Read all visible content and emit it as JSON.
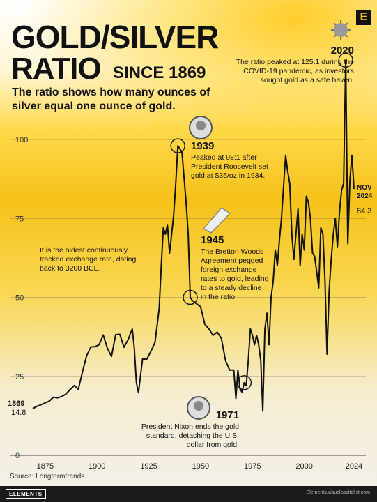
{
  "header": {
    "title_line1": "GOLD/SILVER",
    "title_line2": "RATIO",
    "since": "SINCE 1869",
    "subtitle": "The ratio shows how many ounces of silver equal one ounce of gold.",
    "brand_letter": "E"
  },
  "footer": {
    "source": "Source: Longtermtrends",
    "brand": "ELEMENTS",
    "right_text": "Elements.visualcapitalist.com"
  },
  "colors": {
    "accent": "#f6c21a",
    "line": "#111111",
    "text": "#111111"
  },
  "chart_data": {
    "type": "line",
    "title": "GOLD/SILVER RATIO SINCE 1869",
    "subtitle": "The ratio shows how many ounces of silver equal one ounce of gold.",
    "xlabel": "",
    "ylabel": "",
    "xlim": [
      1869,
      2024
    ],
    "ylim": [
      0,
      100
    ],
    "x_ticks": [
      "1875",
      "1900",
      "1925",
      "1950",
      "1975",
      "2000",
      "2024"
    ],
    "y_ticks": [
      "0",
      "25",
      "50",
      "75",
      "100"
    ],
    "grid": true,
    "series": [
      {
        "name": "",
        "points": [
          [
            1869,
            14.8
          ],
          [
            1871,
            15.5
          ],
          [
            1873,
            16.0
          ],
          [
            1875,
            16.6
          ],
          [
            1877,
            17.2
          ],
          [
            1879,
            18.4
          ],
          [
            1881,
            18.2
          ],
          [
            1883,
            18.6
          ],
          [
            1885,
            19.4
          ],
          [
            1887,
            20.8
          ],
          [
            1889,
            22.1
          ],
          [
            1891,
            20.9
          ],
          [
            1893,
            26.5
          ],
          [
            1895,
            31.5
          ],
          [
            1897,
            34.3
          ],
          [
            1899,
            34.4
          ],
          [
            1901,
            35.0
          ],
          [
            1903,
            38.1
          ],
          [
            1905,
            33.9
          ],
          [
            1907,
            31.3
          ],
          [
            1909,
            38.2
          ],
          [
            1911,
            38.3
          ],
          [
            1913,
            34.2
          ],
          [
            1915,
            36.6
          ],
          [
            1917,
            40.0
          ],
          [
            1918,
            34.0
          ],
          [
            1919,
            23.0
          ],
          [
            1920,
            19.8
          ],
          [
            1922,
            30.5
          ],
          [
            1924,
            30.4
          ],
          [
            1926,
            32.9
          ],
          [
            1928,
            35.8
          ],
          [
            1930,
            46.4
          ],
          [
            1931,
            60.0
          ],
          [
            1932,
            72.0
          ],
          [
            1933,
            70.0
          ],
          [
            1934,
            73.0
          ],
          [
            1935,
            64.0
          ],
          [
            1936,
            70.0
          ],
          [
            1937,
            76.0
          ],
          [
            1938,
            86.0
          ],
          [
            1939,
            98.0
          ],
          [
            1940,
            97.0
          ],
          [
            1941,
            96.0
          ],
          [
            1942,
            88.0
          ],
          [
            1943,
            80.0
          ],
          [
            1944,
            70.0
          ],
          [
            1945,
            50.0
          ],
          [
            1946,
            49.0
          ],
          [
            1948,
            48.0
          ],
          [
            1950,
            47.0
          ],
          [
            1952,
            41.5
          ],
          [
            1954,
            40.0
          ],
          [
            1956,
            38.0
          ],
          [
            1958,
            39.0
          ],
          [
            1960,
            37.0
          ],
          [
            1962,
            30.0
          ],
          [
            1964,
            27.0
          ],
          [
            1966,
            27.0
          ],
          [
            1967,
            18.0
          ],
          [
            1968,
            27.0
          ],
          [
            1969,
            21.0
          ],
          [
            1970,
            20.0
          ],
          [
            1971,
            23.0
          ],
          [
            1972,
            22.0
          ],
          [
            1973,
            30.0
          ],
          [
            1974,
            40.0
          ],
          [
            1975,
            38.0
          ],
          [
            1976,
            35.0
          ],
          [
            1977,
            38.0
          ],
          [
            1978,
            35.0
          ],
          [
            1979,
            30.0
          ],
          [
            1980,
            14.0
          ],
          [
            1981,
            40.0
          ],
          [
            1982,
            45.0
          ],
          [
            1983,
            35.0
          ],
          [
            1984,
            50.0
          ],
          [
            1985,
            55.0
          ],
          [
            1986,
            65.0
          ],
          [
            1987,
            60.0
          ],
          [
            1988,
            68.0
          ],
          [
            1989,
            75.0
          ],
          [
            1990,
            85.0
          ],
          [
            1991,
            95.0
          ],
          [
            1992,
            90.0
          ],
          [
            1993,
            86.0
          ],
          [
            1994,
            70.0
          ],
          [
            1995,
            62.0
          ],
          [
            1996,
            70.0
          ],
          [
            1997,
            78.0
          ],
          [
            1998,
            60.0
          ],
          [
            1999,
            70.0
          ],
          [
            2000,
            65.0
          ],
          [
            2001,
            82.0
          ],
          [
            2002,
            80.0
          ],
          [
            2003,
            75.0
          ],
          [
            2004,
            64.0
          ],
          [
            2005,
            63.0
          ],
          [
            2006,
            58.0
          ],
          [
            2007,
            53.0
          ],
          [
            2008,
            72.0
          ],
          [
            2009,
            70.0
          ],
          [
            2010,
            55.0
          ],
          [
            2011,
            32.0
          ],
          [
            2012,
            52.0
          ],
          [
            2013,
            62.0
          ],
          [
            2014,
            70.0
          ],
          [
            2015,
            75.0
          ],
          [
            2016,
            66.0
          ],
          [
            2017,
            77.0
          ],
          [
            2018,
            84.0
          ],
          [
            2019,
            86.0
          ],
          [
            2020,
            125.1
          ],
          [
            2021,
            67.0
          ],
          [
            2022,
            87.0
          ],
          [
            2023,
            95.0
          ],
          [
            2024,
            84.3
          ]
        ]
      }
    ],
    "start_label": {
      "year": "1869",
      "value": "14.8"
    },
    "end_label": {
      "line1": "NOV",
      "line2": "2024",
      "value": "84.3"
    },
    "annotations": [
      {
        "year": "2020",
        "lines": [
          "The ratio peaked at 125.1 during the",
          "COVID-19 pandemic, as investors",
          "sought gold as a safe haven."
        ]
      },
      {
        "year": "1939",
        "lines": [
          "Peaked at 98:1 after",
          "President Roosevelt set",
          "gold at $35/oz in 1934."
        ]
      },
      {
        "year": "1945",
        "lines": [
          "The Bretton Woods",
          "Agreement pegged",
          "foreign exchange",
          "rates to gold, leading",
          "to a steady decline",
          "in the ratio."
        ]
      },
      {
        "year": "1971",
        "lines": [
          "President Nixon ends the gold",
          "standard, detaching the U.S.",
          "dollar from gold."
        ]
      },
      {
        "year": "",
        "lines": [
          "It is the oldest continuously",
          "tracked exchange rate, dating",
          "back to 3200 BCE."
        ]
      }
    ]
  }
}
